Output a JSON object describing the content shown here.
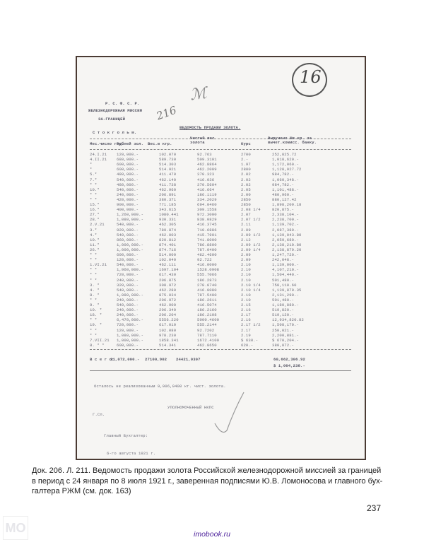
{
  "scan": {
    "header": {
      "republic": "Р. С. Ф. С. Р.",
      "mission": "ЖЕЛЕЗНОДОРОЖНАЯ МИССИЯ",
      "abroad": "ЗА-ГРАНИЦЕЙ",
      "city": "С т о к г о л ь м.",
      "title": "ВЕДОМОСТЬ ПРОДАЖИ ЗОЛОТА.",
      "handwritten_number": "16",
      "handwritten_note": "216"
    },
    "columns": [
      "Мес.число год.",
      "Рублей зол.",
      "Вес.в кгр.",
      "Чистый вес золота",
      "Курс",
      "Выручено Шв.кр. за вычет.комисс. банку."
    ],
    "rows": [
      [
        "24.I.21",
        "120,000.-",
        "102.070",
        "92.763",
        "2700",
        "252,825.72"
      ],
      [
        "4.II.21",
        "680,000.-",
        "589.730",
        "509.3101",
        "2.-",
        "1,018,620.-"
      ],
      [
        "*",
        "600,000.-",
        "514.303",
        "462.8864",
        "1.97",
        "1,172,060.-"
      ],
      [
        "*",
        "600,000.-",
        "514.921",
        "462.2009",
        "2800",
        "1,128,927.72"
      ],
      [
        "5.*",
        "480,000.-",
        "411.470",
        "370.323",
        "2.02",
        "984,782.-"
      ],
      [
        "7.*",
        "540,000.-",
        "462.140",
        "416.036",
        "2.02",
        "1,060,348.-"
      ],
      [
        "* *",
        "480,000.-",
        "411.738",
        "370.5604",
        "2.02",
        "984,782.-"
      ],
      [
        "10.*",
        "540,000.-",
        "462.960",
        "416.664",
        "2.05",
        "1,101,488.-"
      ],
      [
        "* *",
        "240,000.-",
        "206.891",
        "186.1119",
        "2.00",
        "480,960.-"
      ],
      [
        "* *",
        "420,000.-",
        "380.371",
        "334.2029",
        "2850",
        "880,127.42"
      ],
      [
        "15.*",
        "900,000.-",
        "771.185",
        "694.0460",
        "2850",
        "1,898,209.18"
      ],
      [
        "16.*",
        "400,000.-",
        "343.615",
        "309.1558",
        "2.08 1/4",
        "820,875.-"
      ],
      [
        "27.*",
        "1,260,000.-",
        "1080.441",
        "972.3000",
        "2.07",
        "2,338,104.-"
      ],
      [
        "28.*",
        "1,080,000.-",
        "930.331",
        "838.0829",
        "2.07 1/2",
        "2,238,700.-"
      ],
      [
        "2.V.21",
        "540,000.-",
        "462.305",
        "416.3745",
        "2.11",
        "1,139,702.-"
      ],
      [
        "3.*",
        "920,000.-",
        "789.874",
        "710.6886",
        "2.09",
        "2,087,389.-"
      ],
      [
        "4.*",
        "540,000.-",
        "462.003",
        "415.7901",
        "2.09 1/2",
        "1,139,043.80"
      ],
      [
        "10.*",
        "860,000.-",
        "820.812",
        "741.8000",
        "2.12",
        "2,059,680.-"
      ],
      [
        "11.*",
        "1,000,000.-",
        "874.401",
        "786.8800",
        "2.09 1/2",
        "2,138,210.80"
      ],
      [
        "26.*",
        "1,000,000.-",
        "874.716",
        "787.0400",
        "2.09 1/4",
        "2,138,879.20"
      ],
      [
        "* *",
        "600,000.-",
        "514.000",
        "462.4600",
        "2.09",
        "1,247,720.-"
      ],
      [
        "* *",
        "120,000.-",
        "102.040",
        "92.722",
        "2.09",
        "242,048.-"
      ],
      [
        "1.VI.21",
        "540,000.-",
        "462.111",
        "416.0000",
        "2.10",
        "1,139,000.-"
      ],
      [
        "* *",
        "1,960,000.-",
        "1697.104",
        "1528.0908",
        "2.10",
        "4,107,210.-"
      ],
      [
        "* *",
        "720,000.-",
        "617.430",
        "555.7066",
        "2.10",
        "1,504,440.-"
      ],
      [
        "* *",
        "240,000.-",
        "206.875",
        "186.2873",
        "2.10",
        "501,480.-"
      ],
      [
        "3. *",
        "320,000.-",
        "308.972",
        "278.0740",
        "2.10 1/4",
        "750,110.60"
      ],
      [
        "4. *",
        "540,000.-",
        "462.280",
        "416.0080",
        "2.10 1/4",
        "1,139,879.35"
      ],
      [
        "8. *",
        "1,080,000.-",
        "875.034",
        "787.5400",
        "2.10",
        "2,131,290.-"
      ],
      [
        "* *",
        "240,000.-",
        "206.972",
        "186.2611",
        "2.10",
        "501,480.-"
      ],
      [
        "9. *",
        "540,000.-",
        "462.900",
        "416.5074",
        "2.15",
        "1,180,880.-"
      ],
      [
        "10. *",
        "240,000.-",
        "206.340",
        "186.2160",
        "2.16",
        "519,820.-"
      ],
      [
        "18. *",
        "240,000.-",
        "206.204",
        "186.2108",
        "2.17",
        "519,120.-"
      ],
      [
        "* *",
        "6,470,000.-",
        "5556.220",
        "5000.4600",
        "2.16",
        "12,934,820.82"
      ],
      [
        "19. *",
        "720,000.-",
        "617.010",
        "555.2144",
        "2.17 1/2",
        "1,508,170.-"
      ],
      [
        "* *",
        "120,000.-",
        "102.080",
        "92.7202",
        "2.17",
        "250,021.-"
      ],
      [
        "* *",
        "1,080,000.-",
        "978.230",
        "787.7110",
        "2.19",
        "2,200,881.-"
      ],
      [
        "7.VII.21",
        "1,000,000.-",
        "1858.341",
        "1672.4100",
        "$ 630.-",
        "$ 670,204.-"
      ],
      [
        "8. * *",
        "600,000.-",
        "514.341",
        "462.8650",
        "620.-",
        "380,872.-"
      ]
    ],
    "totals": {
      "label": "В с е г о:",
      "rubles": "31,072,000.-",
      "kg": "27100,902",
      "pure": "24421,0307",
      "proceeds_sek": "60,662,306.92",
      "proceeds_usd": "$ 1,064,238.-"
    },
    "remaining": "Осталось не реализованным 9,006,0400 кг. чист. золота.",
    "authorized": "УПОЛНОМОЧЕННЫЙ НКПС",
    "gsp": "Г.Сп.",
    "chief_accountant": "Главный Бухгалтер:",
    "date": "6-го августа 1921 г."
  },
  "caption": {
    "line1": "Док. 206. Л. 211. Ведомость продажи золота Российской железнодорожной миссией за границей",
    "line2": "в период с 24 января по 8 июля 1921 г., заверенная подписями Ю.В. Ломоносова и главного бух-",
    "line3": "галтера РЖМ (см. док. 163)"
  },
  "page_number": "237",
  "site": "imobook.ru",
  "logo_text": "МО",
  "colors": {
    "site_link": "#4b1f9a",
    "scan_border": "#4a3a33"
  }
}
